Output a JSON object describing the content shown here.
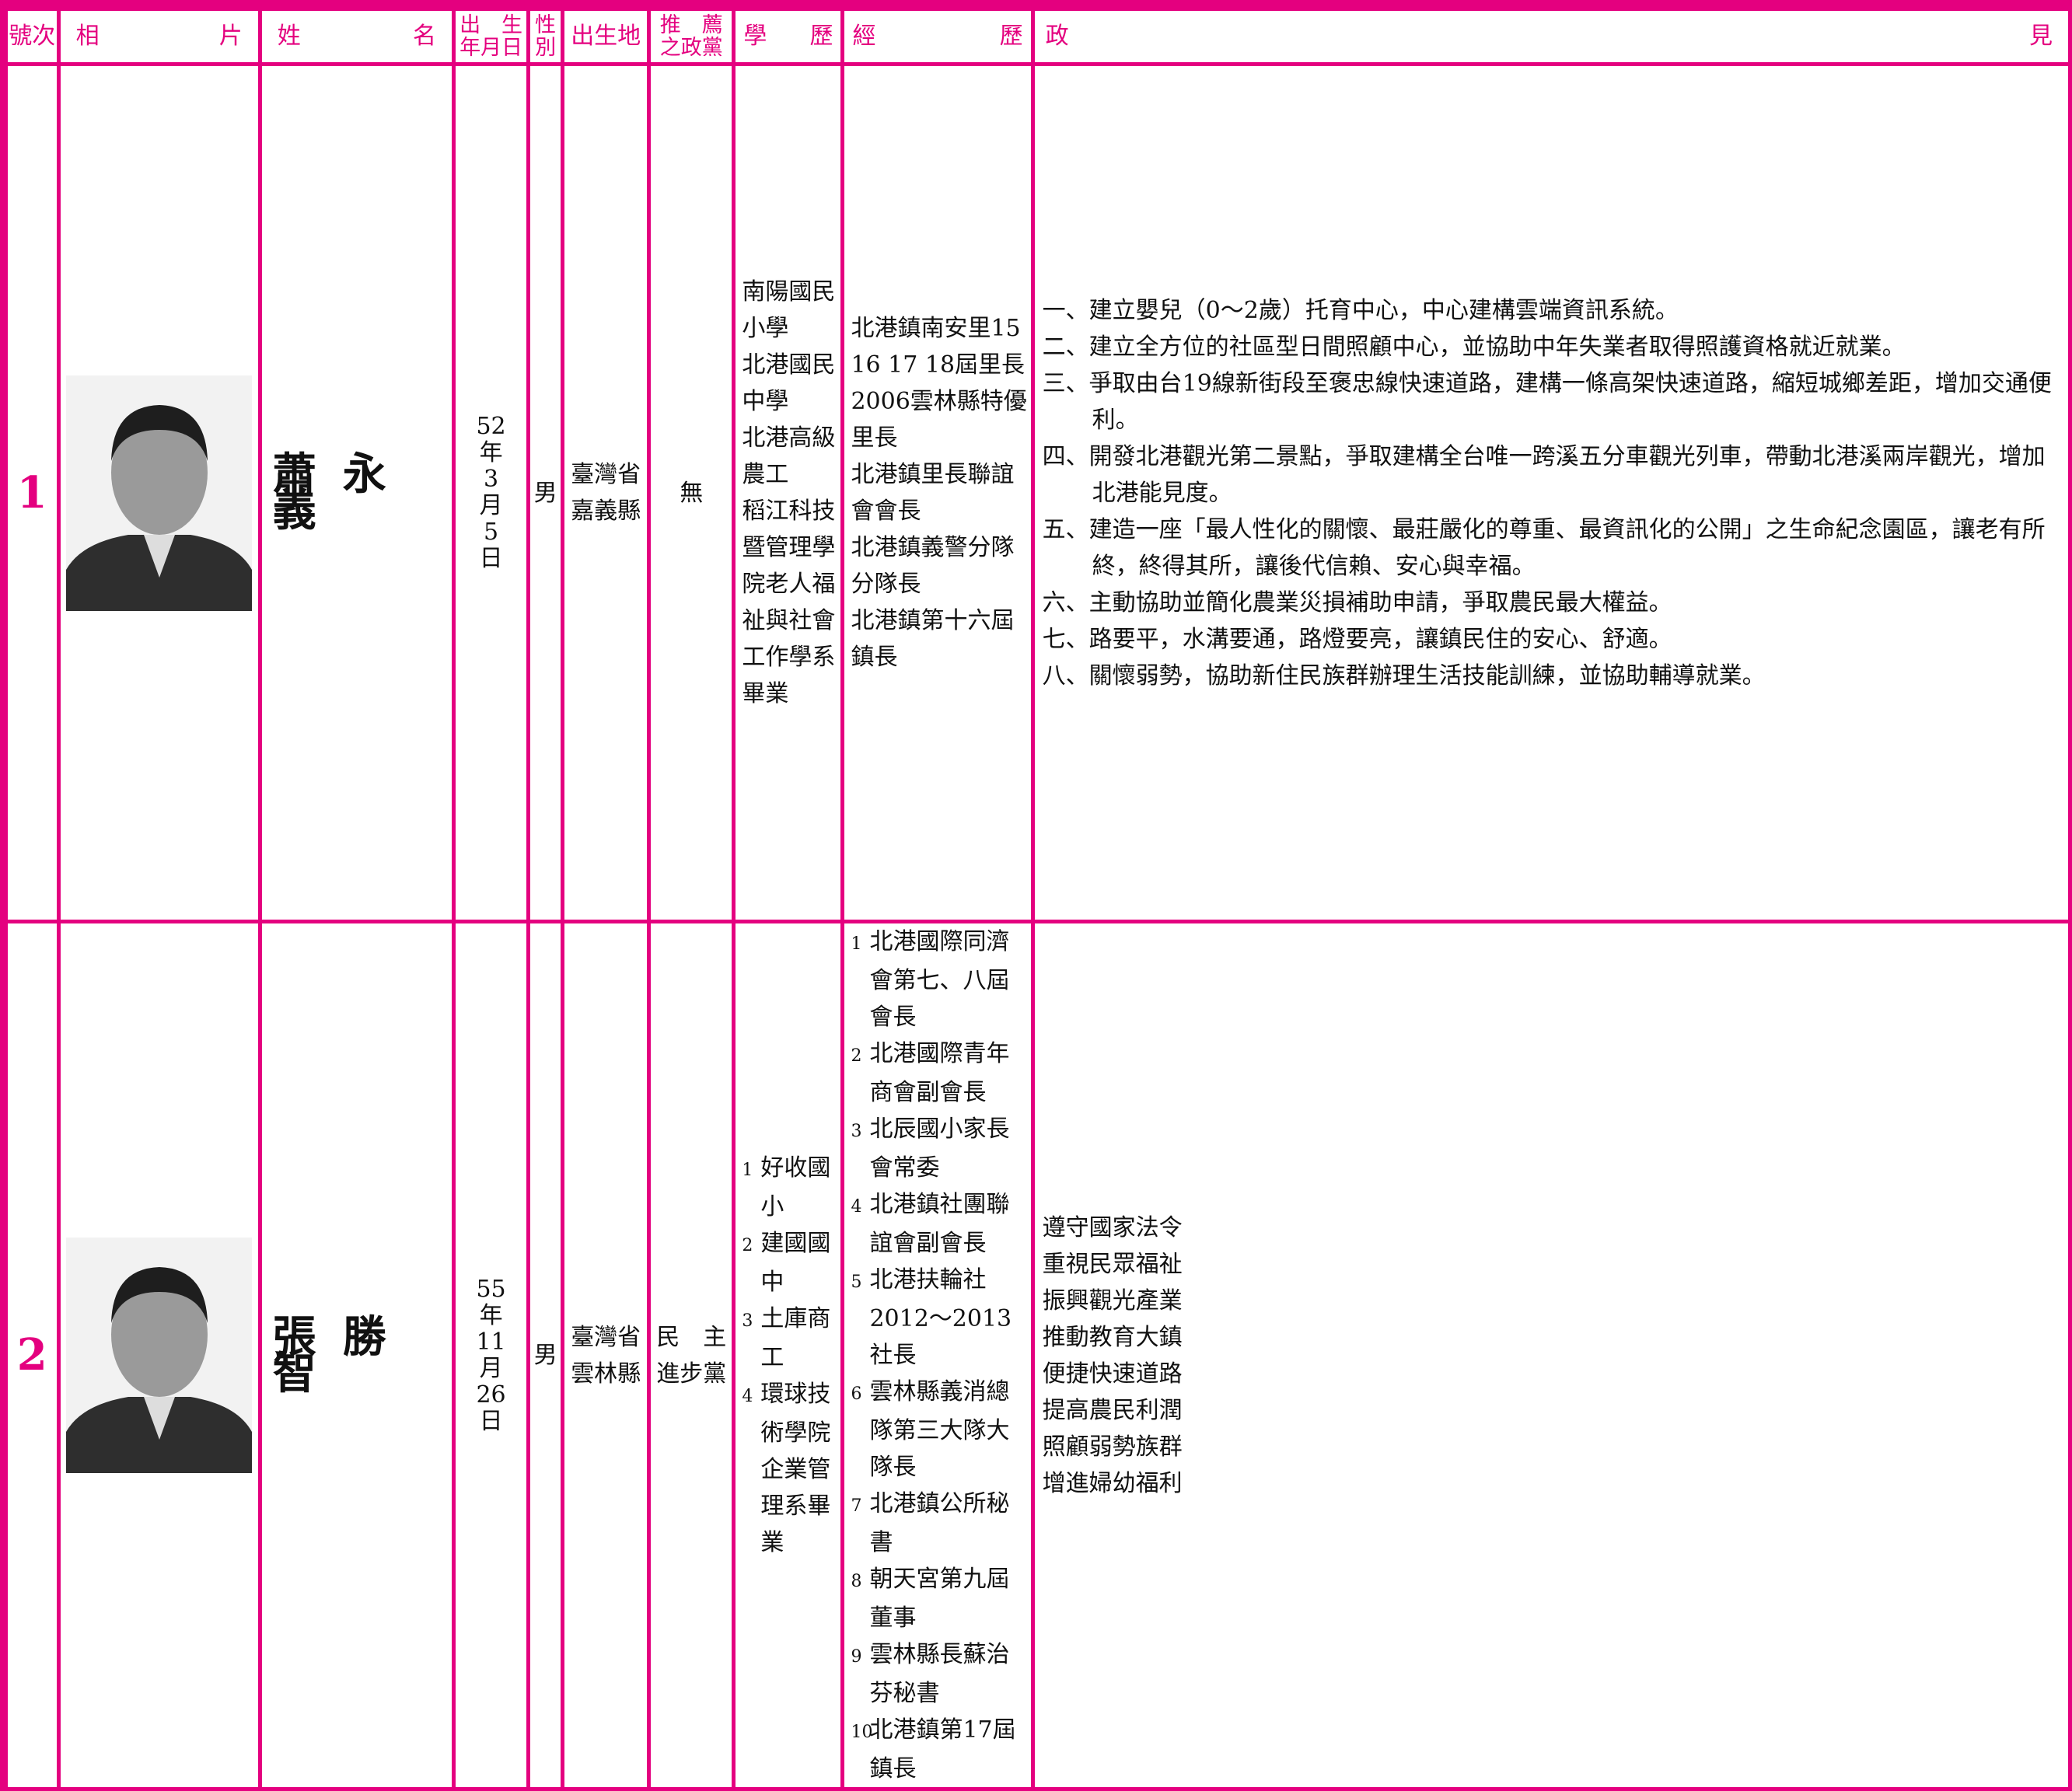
{
  "header": {
    "number": "號次",
    "photo": [
      "相",
      "片"
    ],
    "name": [
      "姓",
      "名"
    ],
    "birth": [
      "出　生",
      "年月日"
    ],
    "gender": [
      "性",
      "別"
    ],
    "birthplace": "出生地",
    "party": [
      "推　薦",
      "之政黨"
    ],
    "education": [
      "學",
      "歷"
    ],
    "experience": [
      "經",
      "歷"
    ],
    "platform": [
      "政",
      "見"
    ]
  },
  "rows": [
    {
      "number": "1",
      "name": "蕭永義",
      "birth": [
        "52",
        "年",
        "3",
        "月",
        "5",
        "日"
      ],
      "gender": "男",
      "birthplace": [
        "臺灣省",
        "嘉義縣"
      ],
      "party": [
        "無"
      ],
      "education": [
        "南陽國民小學",
        "北港國民中學",
        "北港高級農工",
        "稻江科技暨管理學院老人福祉與社會工作學系畢業"
      ],
      "experience": [
        "北港鎮南安里15 16 17 18屆里長",
        "2006雲林縣特優里長",
        "北港鎮里長聯誼會會長",
        "北港鎮義警分隊分隊長",
        "北港鎮第十六屆鎮長"
      ],
      "platform": [
        {
          "no": "一、",
          "text": "建立嬰兒（0〜2歲）托育中心，中心建構雲端資訊系統。"
        },
        {
          "no": "二、",
          "text": "建立全方位的社區型日間照顧中心，並協助中年失業者取得照護資格就近就業。"
        },
        {
          "no": "三、",
          "text": "爭取由台19線新街段至褒忠線快速道路，建構一條高架快速道路，縮短城鄉差距，增加交通便利。"
        },
        {
          "no": "四、",
          "text": "開發北港觀光第二景點，爭取建構全台唯一跨溪五分車觀光列車，帶動北港溪兩岸觀光，增加北港能見度。"
        },
        {
          "no": "五、",
          "text": "建造一座「最人性化的關懷、最莊嚴化的尊重、最資訊化的公開」之生命紀念園區，讓老有所終，終得其所，讓後代信賴、安心與幸福。"
        },
        {
          "no": "六、",
          "text": "主動協助並簡化農業災損補助申請，爭取農民最大權益。"
        },
        {
          "no": "七、",
          "text": "路要平，水溝要通，路燈要亮，讓鎮民住的安心、舒適。"
        },
        {
          "no": "八、",
          "text": "關懷弱勢，協助新住民族群辦理生活技能訓練，並協助輔導就業。"
        }
      ]
    },
    {
      "number": "2",
      "name": "張勝智",
      "birth": [
        "55",
        "年",
        "11",
        "月",
        "26",
        "日"
      ],
      "gender": "男",
      "birthplace": [
        "臺灣省",
        "雲林縣"
      ],
      "party": [
        "民　主",
        "進步黨"
      ],
      "education": [
        {
          "no": "1",
          "text": "好收國小"
        },
        {
          "no": "2",
          "text": "建國國中"
        },
        {
          "no": "3",
          "text": "土庫商工"
        },
        {
          "no": "4",
          "text": "環球技術學院企業管理系畢業"
        }
      ],
      "experience": [
        {
          "no": "1",
          "text": "北港國際同濟會第七、八屆會長"
        },
        {
          "no": "2",
          "text": "北港國際青年商會副會長"
        },
        {
          "no": "3",
          "text": "北辰國小家長會常委"
        },
        {
          "no": "4",
          "text": "北港鎮社團聯誼會副會長"
        },
        {
          "no": "5",
          "text": "北港扶輪社2012〜2013社長"
        },
        {
          "no": "6",
          "text": "雲林縣義消總隊第三大隊大隊長"
        },
        {
          "no": "7",
          "text": "北港鎮公所秘書"
        },
        {
          "no": "8",
          "text": "朝天宮第九屆董事"
        },
        {
          "no": "9",
          "text": "雲林縣長蘇治芬秘書"
        },
        {
          "no": "10",
          "text": "北港鎮第17屆鎮長"
        }
      ],
      "platform": [
        "遵守國家法令",
        "重視民眾福祉",
        "振興觀光產業",
        "推動教育大鎮",
        "便捷快速道路",
        "提高農民利潤",
        "照顧弱勢族群",
        "增進婦幼福利"
      ]
    }
  ]
}
